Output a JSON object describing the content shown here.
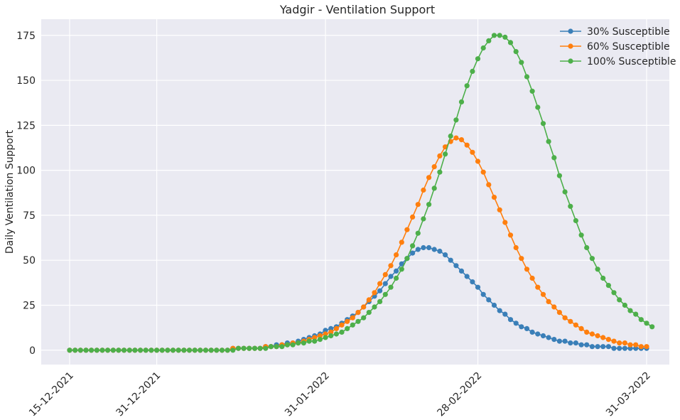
{
  "chart_data": {
    "type": "line",
    "title": "Yadgir - Ventilation Support",
    "xlabel": "",
    "ylabel": "Daily Ventilation Support",
    "x_start": "15-12-2021",
    "x_end": "31-03-2022",
    "x_tick_labels": [
      "15-12-2021",
      "31-12-2021",
      "31-01-2022",
      "28-02-2022",
      "31-03-2022"
    ],
    "y_ticks": [
      0,
      25,
      50,
      75,
      100,
      125,
      150,
      175
    ],
    "ylim": [
      -8,
      184
    ],
    "grid": true,
    "legend_position": "top-right",
    "series": [
      {
        "name": "30% Susceptible",
        "color": "#3a7fb8",
        "peak": {
          "date": "2022-02-20",
          "value": 57.5
        },
        "values": [
          0,
          0,
          0,
          0,
          0,
          0,
          0,
          0,
          0,
          0,
          0,
          0,
          0,
          0,
          0,
          0,
          0,
          0,
          0,
          0,
          0,
          0,
          0,
          0,
          0,
          0,
          0,
          0,
          0,
          0,
          1,
          1,
          1,
          1,
          1,
          1,
          2,
          2,
          3,
          3,
          4,
          4,
          5,
          6,
          7,
          8,
          9,
          11,
          12,
          13,
          15,
          17,
          19,
          21,
          24,
          27,
          30,
          33,
          37,
          41,
          44,
          48,
          51,
          54,
          56,
          57,
          57,
          56,
          55,
          53,
          50,
          47,
          44,
          41,
          38,
          35,
          31,
          28,
          25,
          22,
          20,
          17,
          15,
          13,
          12,
          10,
          9,
          8,
          7,
          6,
          5,
          5,
          4,
          4,
          3,
          3,
          2,
          2,
          2,
          2,
          1,
          1,
          1,
          1,
          1,
          1,
          1
        ]
      },
      {
        "name": "60% Susceptible",
        "color": "#ff7f0e",
        "peak": {
          "date": "2022-02-24",
          "value": 118
        },
        "values": [
          0,
          0,
          0,
          0,
          0,
          0,
          0,
          0,
          0,
          0,
          0,
          0,
          0,
          0,
          0,
          0,
          0,
          0,
          0,
          0,
          0,
          0,
          0,
          0,
          0,
          0,
          0,
          0,
          0,
          0,
          1,
          1,
          1,
          1,
          1,
          1,
          2,
          2,
          2,
          3,
          3,
          4,
          4,
          5,
          6,
          7,
          8,
          9,
          10,
          12,
          14,
          16,
          18,
          21,
          24,
          28,
          32,
          37,
          42,
          47,
          53,
          60,
          67,
          74,
          81,
          89,
          96,
          102,
          108,
          113,
          116,
          118,
          117,
          114,
          110,
          105,
          99,
          92,
          85,
          78,
          71,
          64,
          57,
          51,
          45,
          40,
          35,
          31,
          27,
          24,
          21,
          18,
          16,
          14,
          12,
          10,
          9,
          8,
          7,
          6,
          5,
          4,
          4,
          3,
          3,
          2,
          2
        ]
      },
      {
        "name": "100% Susceptible",
        "color": "#4daf4a",
        "peak": {
          "date": "2022-03-03",
          "value": 175.5
        },
        "values": [
          0,
          0,
          0,
          0,
          0,
          0,
          0,
          0,
          0,
          0,
          0,
          0,
          0,
          0,
          0,
          0,
          0,
          0,
          0,
          0,
          0,
          0,
          0,
          0,
          0,
          0,
          0,
          0,
          0,
          0,
          0,
          1,
          1,
          1,
          1,
          1,
          1,
          2,
          2,
          2,
          3,
          3,
          4,
          4,
          5,
          5,
          6,
          7,
          8,
          9,
          10,
          12,
          14,
          16,
          18,
          21,
          24,
          27,
          31,
          35,
          40,
          45,
          51,
          58,
          65,
          73,
          81,
          90,
          99,
          109,
          119,
          128,
          138,
          147,
          155,
          162,
          168,
          172,
          175,
          175,
          174,
          171,
          166,
          160,
          152,
          144,
          135,
          126,
          116,
          107,
          97,
          88,
          80,
          72,
          64,
          57,
          51,
          45,
          40,
          36,
          32,
          28,
          25,
          22,
          20,
          17,
          15,
          13
        ]
      }
    ]
  }
}
